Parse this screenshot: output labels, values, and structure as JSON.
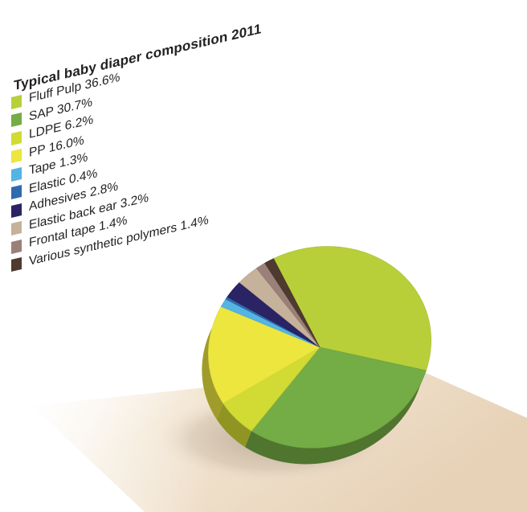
{
  "chart_data": {
    "type": "pie",
    "title": "Typical baby diaper composition 2011",
    "slices": [
      {
        "label": "Fluff Pulp 36.6%",
        "name": "Fluff Pulp",
        "value": 36.6,
        "color": "#b8cf3a"
      },
      {
        "label": "SAP 30.7%",
        "name": "SAP",
        "value": 30.7,
        "color": "#74ac45"
      },
      {
        "label": "LDPE 6.2%",
        "name": "LDPE",
        "value": 6.2,
        "color": "#d2da34"
      },
      {
        "label": "PP 16.0%",
        "name": "PP",
        "value": 16.0,
        "color": "#ece63f"
      },
      {
        "label": "Tape 1.3%",
        "name": "Tape",
        "value": 1.3,
        "color": "#54b4e2"
      },
      {
        "label": "Elastic 0.4%",
        "name": "Elastic",
        "value": 0.4,
        "color": "#2f6aaf"
      },
      {
        "label": "Adhesives 2.8%",
        "name": "Adhesives",
        "value": 2.8,
        "color": "#2a2364"
      },
      {
        "label": "Elastic back ear 3.2%",
        "name": "Elastic back ear",
        "value": 3.2,
        "color": "#c6b29a"
      },
      {
        "label": "Frontal tape 1.4%",
        "name": "Frontal tape",
        "value": 1.4,
        "color": "#9a8078"
      },
      {
        "label": "Various synthetic polymers 1.4%",
        "name": "Various synthetic polymers",
        "value": 1.4,
        "color": "#4e3a2e"
      }
    ],
    "legend_placement": "left",
    "style": "3d-perspective"
  }
}
